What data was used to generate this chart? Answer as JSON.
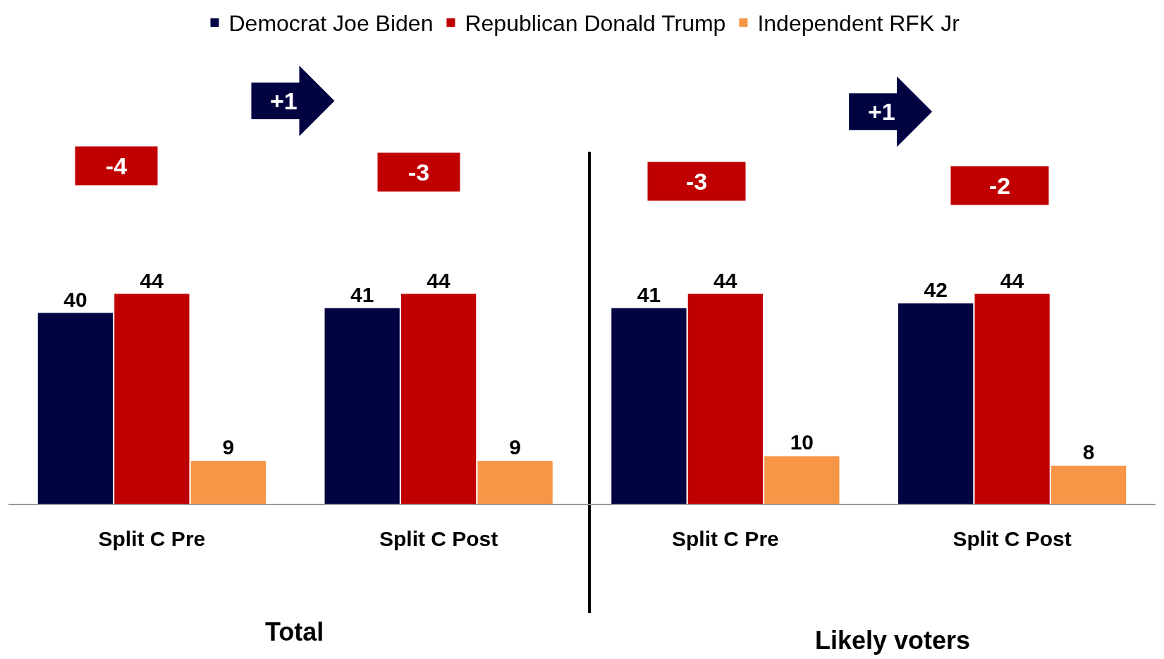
{
  "chart_data": {
    "type": "bar",
    "categories": [
      "Split C Pre",
      "Split C Post",
      "Split C Pre",
      "Split C Post"
    ],
    "series": [
      {
        "name": "Democrat Joe Biden",
        "color": "#020442",
        "values": [
          40,
          41,
          41,
          42
        ]
      },
      {
        "name": "Republican Donald Trump",
        "color": "#c00000",
        "values": [
          44,
          44,
          44,
          44
        ]
      },
      {
        "name": "Independent RFK Jr",
        "color": "#f79646",
        "values": [
          9,
          9,
          10,
          8
        ]
      }
    ],
    "data_labels": true,
    "legend": "top",
    "grid": false,
    "annotations": [
      "-4",
      "-3",
      "-3",
      "-2",
      "+1",
      "+1",
      "Total",
      "Likely voters"
    ]
  }
}
